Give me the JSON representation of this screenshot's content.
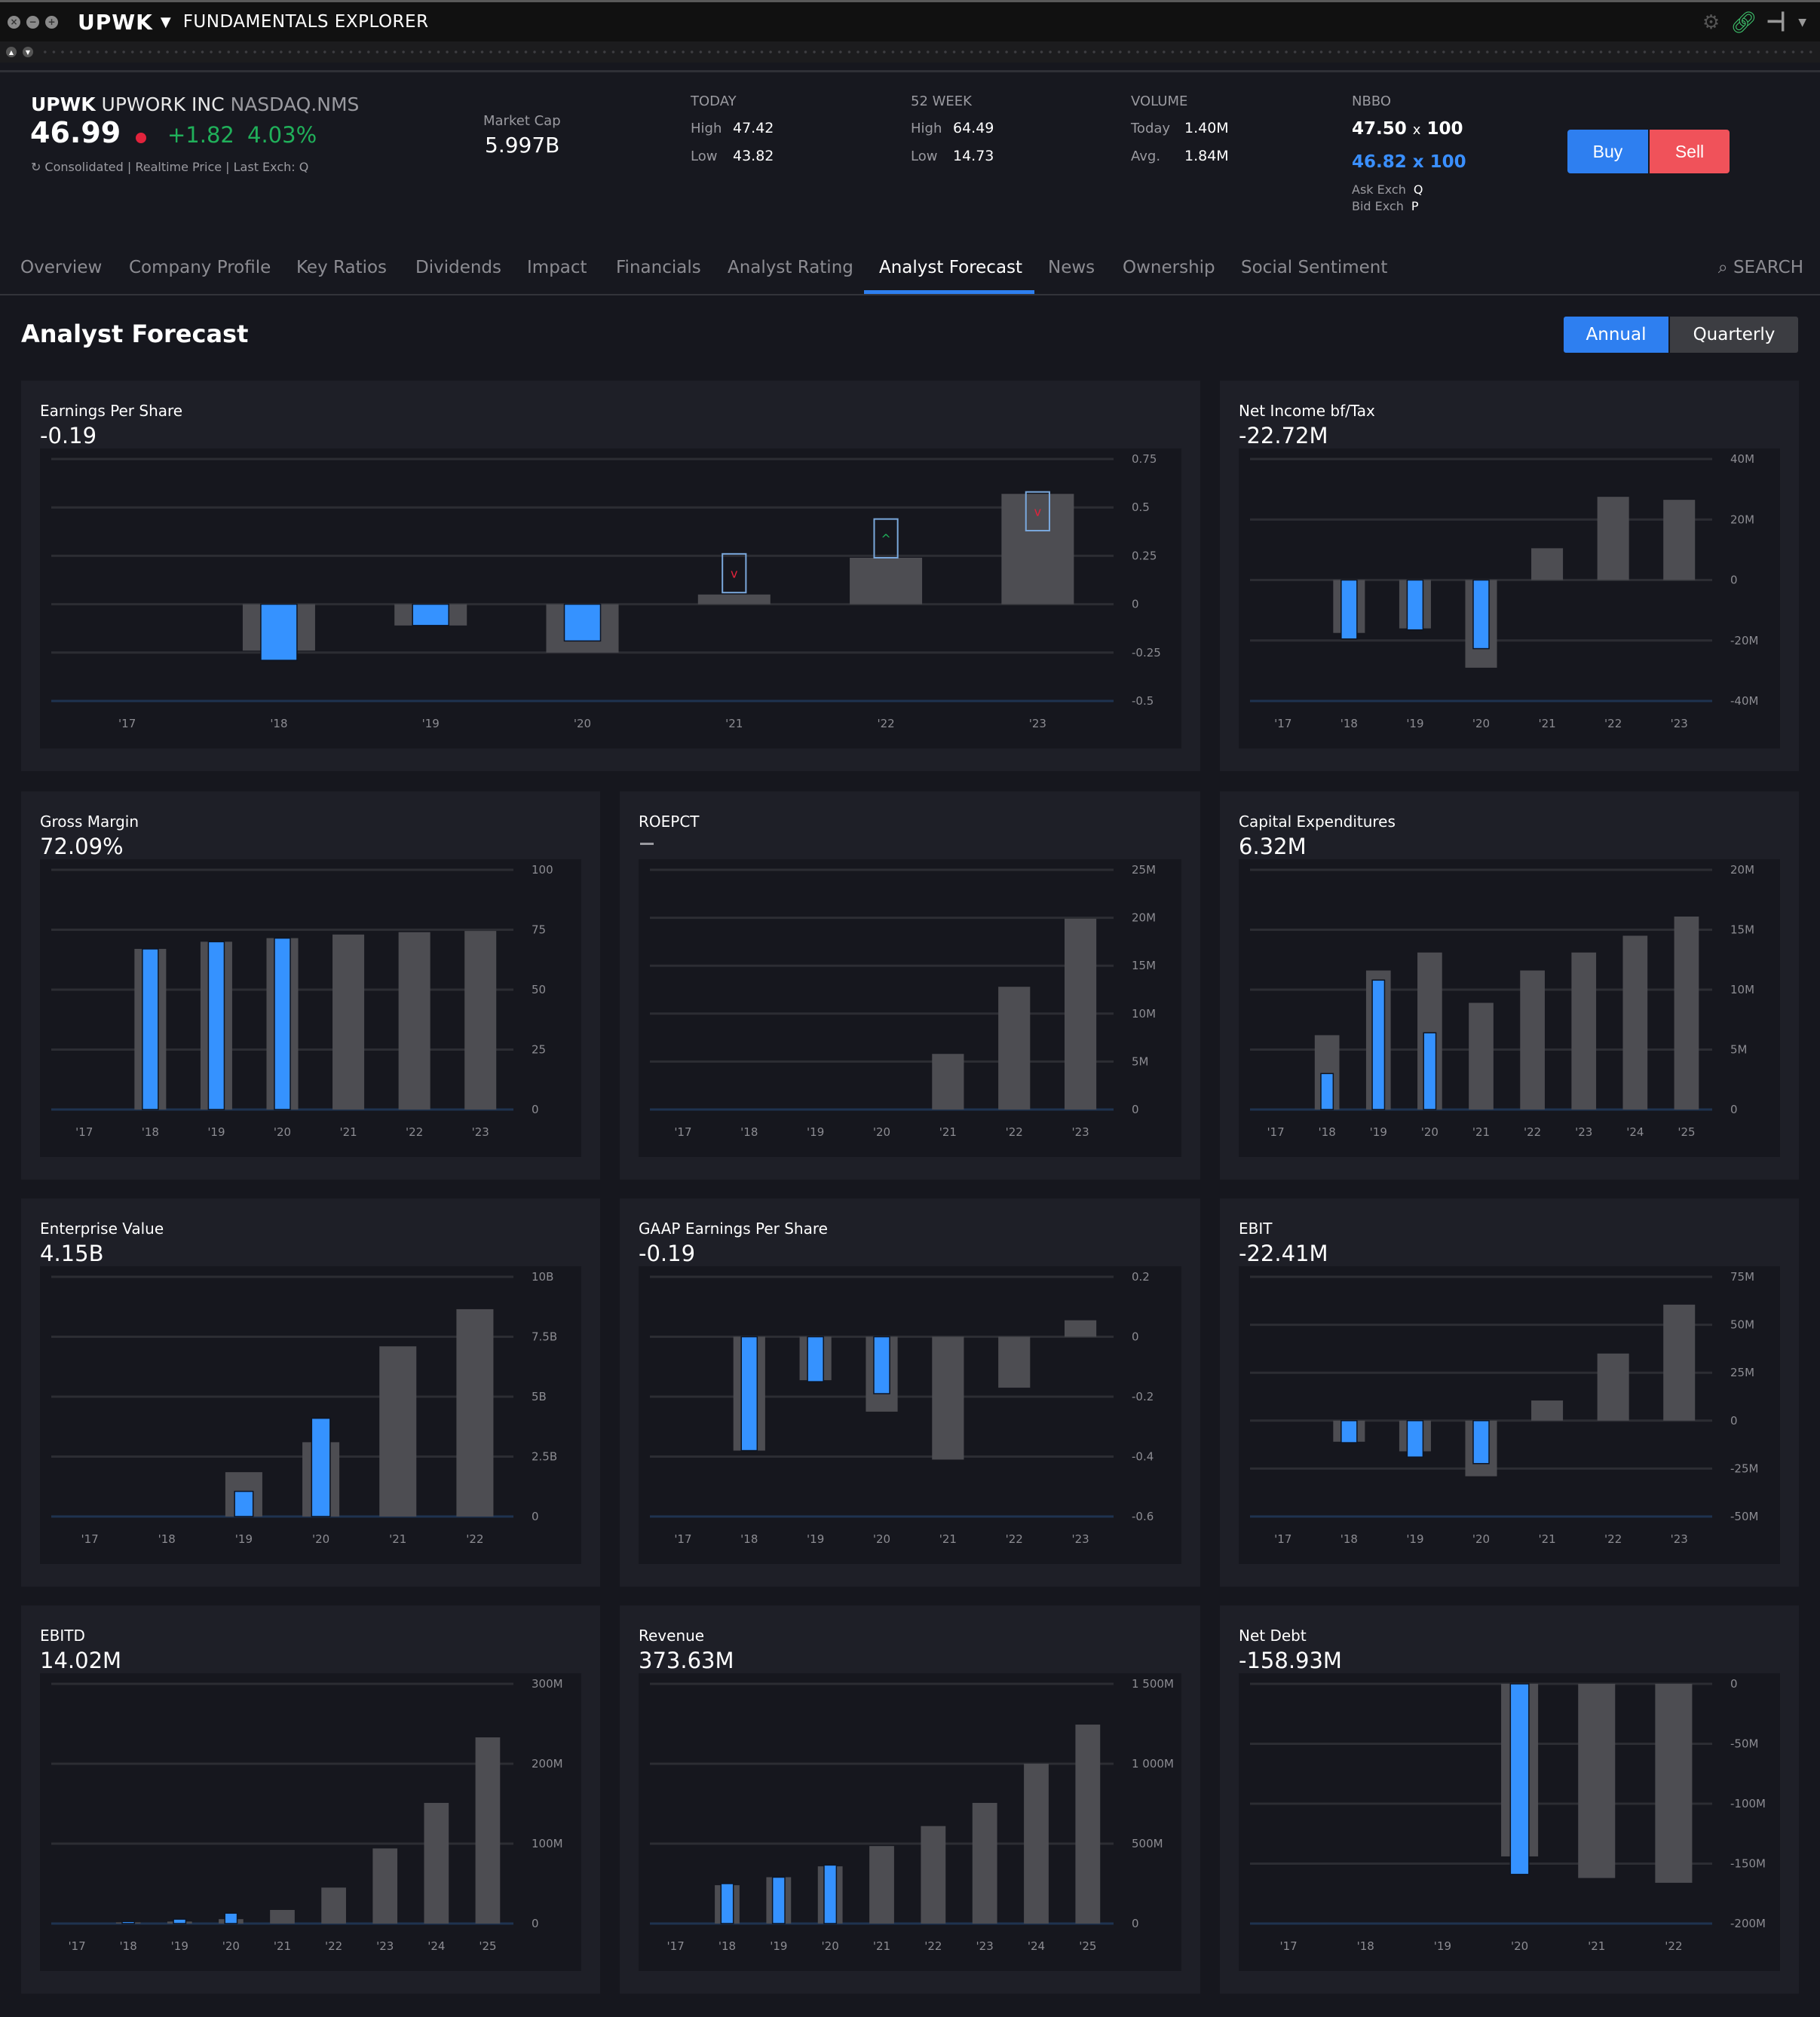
{
  "window": {
    "symbol": "UPWK",
    "app_title": "FUNDAMENTALS EXPLORER"
  },
  "header": {
    "ticker": "UPWK",
    "company": "UPWORK INC",
    "exchange": "NASDAQ.NMS",
    "price": "46.99",
    "change": "+1.82",
    "change_pct": "4.03%",
    "sub": "Consolidated | Realtime Price | Last Exch: Q",
    "market_cap_label": "Market Cap",
    "market_cap": "5.997B",
    "today": {
      "label": "TODAY",
      "high_label": "High",
      "high": "47.42",
      "low_label": "Low",
      "low": "43.82"
    },
    "week52": {
      "label": "52 WEEK",
      "high_label": "High",
      "high": "64.49",
      "low_label": "Low",
      "low": "14.73"
    },
    "volume": {
      "label": "VOLUME",
      "today_label": "Today",
      "today": "1.40M",
      "avg_label": "Avg.",
      "avg": "1.84M"
    },
    "nbbo": {
      "label": "NBBO",
      "ask_price": "47.50",
      "ask_x": "x",
      "ask_size": "100",
      "bid": "46.82 x 100",
      "ask_exch_label": "Ask Exch",
      "ask_exch": "Q",
      "bid_exch_label": "Bid Exch",
      "bid_exch": "P"
    },
    "buy_label": "Buy",
    "sell_label": "Sell"
  },
  "tabs": {
    "items": [
      "Overview",
      "Company Profile",
      "Key Ratios",
      "Dividends",
      "Impact",
      "Financials",
      "Analyst Rating",
      "Analyst Forecast",
      "News",
      "Ownership",
      "Social Sentiment"
    ],
    "active": "Analyst Forecast",
    "search_label": "SEARCH"
  },
  "section": {
    "title": "Analyst Forecast",
    "annual_label": "Annual",
    "quarterly_label": "Quarterly"
  },
  "colors": {
    "actual": "#3592ff",
    "estimate": "#4d4d52",
    "accent": "#2e7ff0",
    "up": "#20b05a",
    "down": "#e2233c"
  },
  "chart_data": [
    {
      "type": "bar",
      "title": "Earnings Per Share",
      "value": "-0.19",
      "categories": [
        "'17",
        "'18",
        "'19",
        "'20",
        "'21",
        "'22",
        "'23"
      ],
      "estimate": [
        null,
        -0.24,
        -0.11,
        -0.25,
        0.05,
        0.24,
        0.57
      ],
      "actual": [
        null,
        -0.29,
        -0.11,
        -0.19,
        null,
        null,
        null
      ],
      "guidance_boxes": [
        null,
        null,
        null,
        null,
        {
          "low": 0.06,
          "high": 0.26,
          "arrow": "down"
        },
        {
          "low": 0.24,
          "high": 0.44,
          "arrow": "up"
        },
        {
          "low": 0.38,
          "high": 0.58,
          "arrow": "down"
        }
      ],
      "yticks": [
        "0.75",
        "0.5",
        "0.25",
        "0",
        "-0.25",
        "-0.5"
      ],
      "ytick_values": [
        0.75,
        0.5,
        0.25,
        0,
        -0.25,
        -0.5
      ],
      "ylim": [
        -0.5,
        0.75
      ]
    },
    {
      "type": "bar",
      "title": "Net Income bf/Tax",
      "value": "-22.72M",
      "categories": [
        "'17",
        "'18",
        "'19",
        "'20",
        "'21",
        "'22",
        "'23"
      ],
      "estimate": [
        null,
        -17.5,
        -16,
        -29,
        10.5,
        27.5,
        26.5
      ],
      "actual": [
        null,
        -19.5,
        -16.5,
        -22.7,
        null,
        null,
        null
      ],
      "yticks": [
        "40M",
        "20M",
        "0",
        "-20M",
        "-40M"
      ],
      "ytick_values": [
        40,
        20,
        0,
        -20,
        -40
      ],
      "ylim": [
        -40,
        40
      ]
    },
    {
      "type": "bar",
      "title": "Gross Margin",
      "value": "72.09%",
      "categories": [
        "'17",
        "'18",
        "'19",
        "'20",
        "'21",
        "'22",
        "'23"
      ],
      "estimate": [
        null,
        67,
        70,
        71.5,
        73,
        74,
        74.5
      ],
      "actual": [
        null,
        67,
        70,
        71.5,
        null,
        null,
        null
      ],
      "yticks": [
        "100",
        "75",
        "50",
        "25",
        "0"
      ],
      "ytick_values": [
        100,
        75,
        50,
        25,
        0
      ],
      "ylim": [
        0,
        100
      ]
    },
    {
      "type": "bar",
      "title": "ROEPCT",
      "value": "—",
      "categories": [
        "'17",
        "'18",
        "'19",
        "'20",
        "'21",
        "'22",
        "'23"
      ],
      "estimate": [
        null,
        null,
        null,
        null,
        5.8,
        12.8,
        19.9
      ],
      "actual": [
        null,
        null,
        null,
        null,
        null,
        null,
        null
      ],
      "yticks": [
        "25M",
        "20M",
        "15M",
        "10M",
        "5M",
        "0"
      ],
      "ytick_values": [
        25,
        20,
        15,
        10,
        5,
        0
      ],
      "ylim": [
        0,
        25
      ]
    },
    {
      "type": "bar",
      "title": "Capital Expenditures",
      "value": "6.32M",
      "categories": [
        "'17",
        "'18",
        "'19",
        "'20",
        "'21",
        "'22",
        "'23",
        "'24",
        "'25"
      ],
      "estimate": [
        null,
        6.2,
        11.6,
        13.1,
        8.9,
        11.6,
        13.1,
        14.5,
        16.1
      ],
      "actual": [
        null,
        3.0,
        10.8,
        6.4,
        null,
        null,
        null,
        null,
        null
      ],
      "yticks": [
        "20M",
        "15M",
        "10M",
        "5M",
        "0"
      ],
      "ytick_values": [
        20,
        15,
        10,
        5,
        0
      ],
      "ylim": [
        0,
        20
      ]
    },
    {
      "type": "bar",
      "title": "Enterprise Value",
      "value": "4.15B",
      "categories": [
        "'17",
        "'18",
        "'19",
        "'20",
        "'21",
        "'22"
      ],
      "estimate": [
        null,
        null,
        1.85,
        3.1,
        7.1,
        8.65
      ],
      "actual": [
        null,
        null,
        1.05,
        4.1,
        null,
        null
      ],
      "yticks": [
        "10B",
        "7.5B",
        "5B",
        "2.5B",
        "0"
      ],
      "ytick_values": [
        10,
        7.5,
        5,
        2.5,
        0
      ],
      "ylim": [
        0,
        10
      ]
    },
    {
      "type": "bar",
      "title": "GAAP Earnings Per Share",
      "value": "-0.19",
      "categories": [
        "'17",
        "'18",
        "'19",
        "'20",
        "'21",
        "'22",
        "'23"
      ],
      "estimate": [
        null,
        -0.38,
        -0.145,
        -0.25,
        -0.41,
        -0.17,
        0.055
      ],
      "actual": [
        null,
        -0.38,
        -0.15,
        -0.19,
        null,
        null,
        null
      ],
      "yticks": [
        "0.2",
        "0",
        "-0.2",
        "-0.4",
        "-0.6"
      ],
      "ytick_values": [
        0.2,
        0,
        -0.2,
        -0.4,
        -0.6
      ],
      "ylim": [
        -0.6,
        0.2
      ]
    },
    {
      "type": "bar",
      "title": "EBIT",
      "value": "-22.41M",
      "categories": [
        "'17",
        "'18",
        "'19",
        "'20",
        "'21",
        "'22",
        "'23"
      ],
      "estimate": [
        null,
        -11,
        -16,
        -29,
        10.5,
        35,
        60.5
      ],
      "actual": [
        null,
        -11.5,
        -19,
        -22.4,
        null,
        null,
        null
      ],
      "yticks": [
        "75M",
        "50M",
        "25M",
        "0",
        "-25M",
        "-50M"
      ],
      "ytick_values": [
        75,
        50,
        25,
        0,
        -25,
        -50
      ],
      "ylim": [
        -50,
        75
      ]
    },
    {
      "type": "bar",
      "title": "EBITD",
      "value": "14.02M",
      "categories": [
        "'17",
        "'18",
        "'19",
        "'20",
        "'21",
        "'22",
        "'23",
        "'24",
        "'25"
      ],
      "estimate": [
        null,
        1.5,
        2.5,
        5.5,
        17,
        45,
        94,
        151,
        233
      ],
      "actual": [
        null,
        2.5,
        5.5,
        13,
        null,
        null,
        null,
        null,
        null
      ],
      "yticks": [
        "300M",
        "200M",
        "100M",
        "0"
      ],
      "ytick_values": [
        300,
        200,
        100,
        0
      ],
      "ylim": [
        0,
        300
      ]
    },
    {
      "type": "bar",
      "title": "Revenue",
      "value": "373.63M",
      "categories": [
        "'17",
        "'18",
        "'19",
        "'20",
        "'21",
        "'22",
        "'23",
        "'24",
        "'25"
      ],
      "estimate": [
        null,
        240,
        290,
        358,
        485,
        610,
        755,
        1000,
        1245
      ],
      "actual": [
        null,
        250,
        290,
        366,
        null,
        null,
        null,
        null,
        null
      ],
      "yticks": [
        "1 500M",
        "1 000M",
        "500M",
        "0"
      ],
      "ytick_values": [
        1500,
        1000,
        500,
        0
      ],
      "ylim": [
        0,
        1500
      ]
    },
    {
      "type": "bar",
      "title": "Net Debt",
      "value": "-158.93M",
      "categories": [
        "'17",
        "'18",
        "'19",
        "'20",
        "'21",
        "'22"
      ],
      "estimate": [
        null,
        null,
        null,
        -144,
        -162,
        -166
      ],
      "actual": [
        null,
        null,
        null,
        -159,
        null,
        null
      ],
      "yticks": [
        "0",
        "-50M",
        "-100M",
        "-150M",
        "-200M"
      ],
      "ytick_values": [
        0,
        -50,
        -100,
        -150,
        -200
      ],
      "ylim": [
        -200,
        0
      ],
      "baseline_top": true
    }
  ]
}
